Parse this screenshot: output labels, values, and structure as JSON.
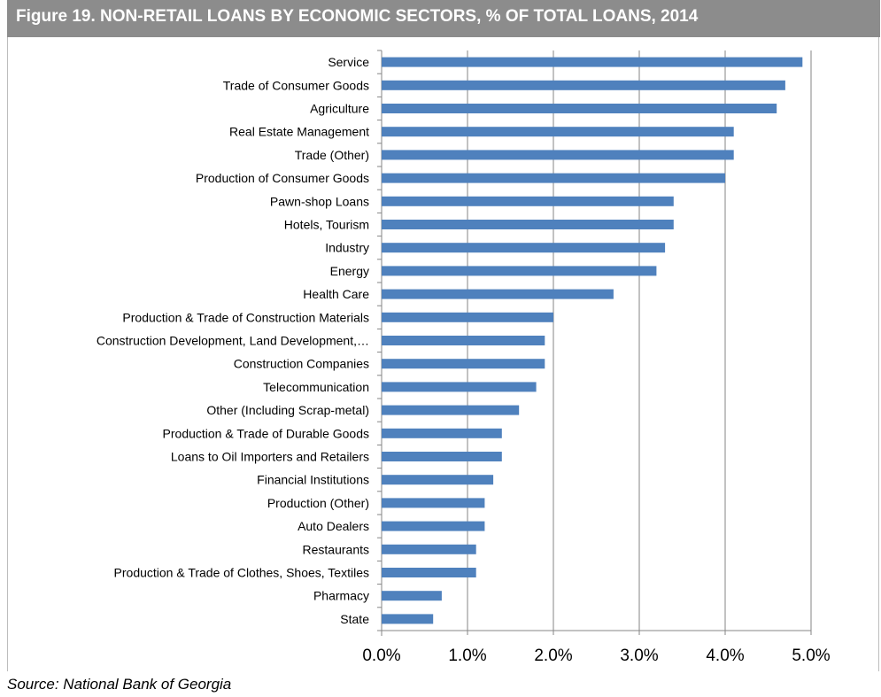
{
  "title": "Figure 19. NON-RETAIL LOANS BY ECONOMIC SECTORS, % OF TOTAL LOANS, 2014",
  "source": "Source: National Bank of Georgia",
  "colors": {
    "bar": "#4f81bd",
    "title_bg": "#8c8c8c",
    "grid": "#868686"
  },
  "chart_data": {
    "type": "bar",
    "orientation": "horizontal",
    "title": "Figure 19. NON-RETAIL LOANS BY ECONOMIC SECTORS, % OF TOTAL LOANS, 2014",
    "xlabel": "",
    "ylabel": "",
    "xlim": [
      0,
      5
    ],
    "x_ticks": [
      "0.0%",
      "1.0%",
      "2.0%",
      "3.0%",
      "4.0%",
      "5.0%"
    ],
    "grid": "vertical",
    "legend": "none",
    "categories": [
      "Service",
      "Trade of Consumer Goods",
      "Agriculture",
      "Real Estate Management",
      "Trade (Other)",
      "Production of Consumer Goods",
      "Pawn-shop Loans",
      "Hotels, Tourism",
      "Industry",
      "Energy",
      "Health Care",
      "Production & Trade of Construction Materials",
      "Construction Development, Land Development,…",
      "Construction Companies",
      "Telecommunication",
      "Other (Including Scrap-metal)",
      "Production & Trade of Durable Goods",
      "Loans to Oil Importers and Retailers",
      "Financial Institutions",
      "Production (Other)",
      "Auto Dealers",
      "Restaurants",
      "Production & Trade of Clothes, Shoes, Textiles",
      "Pharmacy",
      "State"
    ],
    "values": [
      4.9,
      4.7,
      4.6,
      4.1,
      4.1,
      4.0,
      3.4,
      3.4,
      3.3,
      3.2,
      2.7,
      2.0,
      1.9,
      1.9,
      1.8,
      1.6,
      1.4,
      1.4,
      1.3,
      1.2,
      1.2,
      1.1,
      1.1,
      0.7,
      0.6
    ]
  }
}
